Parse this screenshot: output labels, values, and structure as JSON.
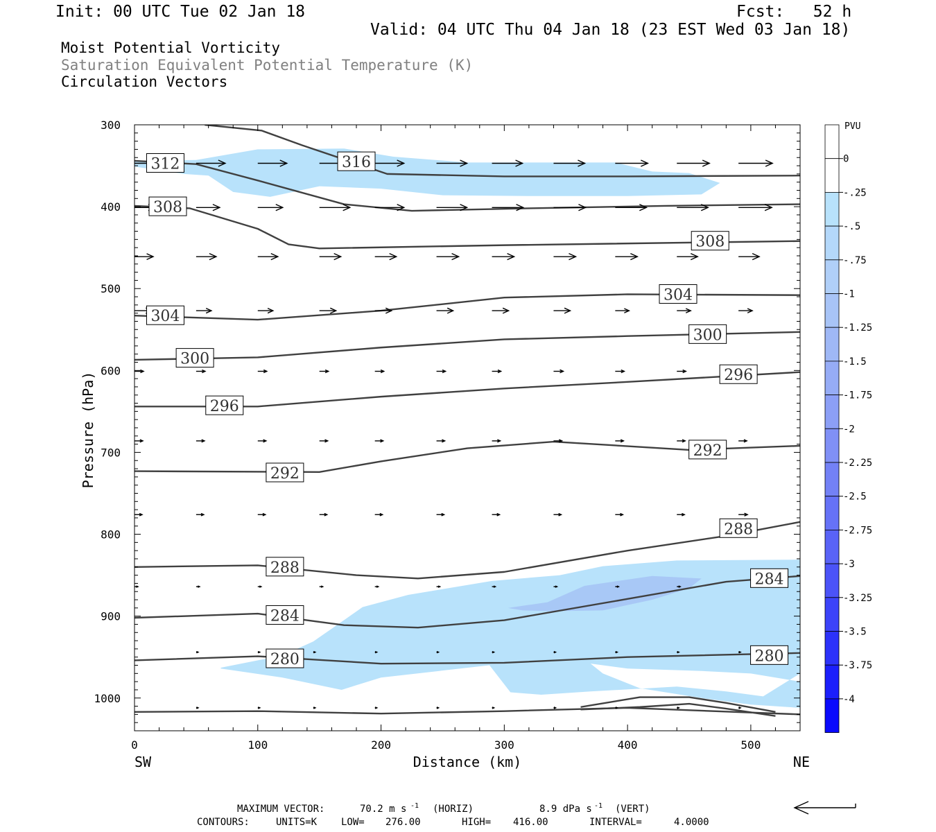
{
  "header": {
    "init": "Init: 00 UTC Tue 02 Jan 18",
    "fcst": "Fcst:   52 h",
    "valid": "Valid: 04 UTC Thu 04 Jan 18 (23 EST Wed 03 Jan 18)",
    "field1": "Moist Potential Vorticity",
    "field2": "Saturation Equivalent Potential Temperature (K)",
    "field3": "Circulation Vectors"
  },
  "colors": {
    "contour": "#404040",
    "field2_text": "#808080",
    "pv_fill_light": "#b8e2fb",
    "pv_fill_mid": "#a8c8f6"
  },
  "chart_data": {
    "type": "cross-section",
    "xlabel": "Distance (km)",
    "ylabel": "Pressure (hPa)",
    "x_end_left": "SW",
    "x_end_right": "NE",
    "xlim": [
      0,
      540
    ],
    "ylim": [
      1040,
      300
    ],
    "x_ticks": [
      0,
      100,
      200,
      300,
      400,
      500
    ],
    "y_ticks": [
      300,
      400,
      500,
      600,
      700,
      800,
      900,
      1000
    ],
    "colorbar": {
      "title": "PVU",
      "labels": [
        "0",
        "-.25",
        "-.5",
        "-.75",
        "-1",
        "-1.25",
        "-1.5",
        "-1.75",
        "-2",
        "-2.25",
        "-2.5",
        "-2.75",
        "-3",
        "-3.25",
        "-3.5",
        "-3.75",
        "-4"
      ],
      "colors": [
        "#ffffff",
        "#ffffff",
        "#b8e2fb",
        "#b4d8fa",
        "#b0cff8",
        "#a8c4f7",
        "#9fb8f6",
        "#96acf6",
        "#8c9ff6",
        "#8090f6",
        "#7381f6",
        "#6672f7",
        "#5963f7",
        "#4b53f8",
        "#3c43f9",
        "#2c32fa",
        "#1b1ffc",
        "#0a0afd"
      ]
    },
    "contours": [
      {
        "label": "316",
        "points": [
          [
            57,
            300
          ],
          [
            103,
            307
          ],
          [
            136,
            325
          ],
          [
            205,
            360
          ],
          [
            300,
            363
          ],
          [
            400,
            363
          ],
          [
            540,
            362
          ]
        ],
        "label_at": [
          [
            180,
            345
          ]
        ]
      },
      {
        "label": "312",
        "points": [
          [
            0,
            344
          ],
          [
            50,
            348
          ],
          [
            100,
            368
          ],
          [
            170,
            397
          ],
          [
            225,
            405
          ],
          [
            320,
            402
          ],
          [
            430,
            399
          ],
          [
            540,
            397
          ]
        ],
        "label_at": [
          [
            25,
            347
          ]
        ]
      },
      {
        "label": "308",
        "points": [
          [
            0,
            399
          ],
          [
            45,
            402
          ],
          [
            100,
            427
          ],
          [
            125,
            446
          ],
          [
            150,
            451
          ],
          [
            300,
            447
          ],
          [
            540,
            442
          ]
        ],
        "label_at": [
          [
            27,
            400
          ],
          [
            467,
            442
          ]
        ]
      },
      {
        "label": "304",
        "points": [
          [
            0,
            533
          ],
          [
            100,
            538
          ],
          [
            200,
            527
          ],
          [
            300,
            511
          ],
          [
            400,
            507
          ],
          [
            540,
            508
          ]
        ],
        "label_at": [
          [
            25,
            533
          ],
          [
            441,
            507
          ]
        ]
      },
      {
        "label": "300",
        "points": [
          [
            0,
            587
          ],
          [
            100,
            584
          ],
          [
            200,
            572
          ],
          [
            300,
            562
          ],
          [
            400,
            558
          ],
          [
            540,
            553
          ]
        ],
        "label_at": [
          [
            49,
            585
          ],
          [
            465,
            556
          ]
        ]
      },
      {
        "label": "296",
        "points": [
          [
            0,
            644
          ],
          [
            100,
            644
          ],
          [
            200,
            632
          ],
          [
            300,
            622
          ],
          [
            400,
            614
          ],
          [
            540,
            602
          ]
        ],
        "label_at": [
          [
            73,
            643
          ],
          [
            490,
            605
          ]
        ]
      },
      {
        "label": "292",
        "points": [
          [
            0,
            723
          ],
          [
            150,
            724
          ],
          [
            200,
            711
          ],
          [
            270,
            695
          ],
          [
            340,
            687
          ],
          [
            450,
            697
          ],
          [
            540,
            692
          ]
        ],
        "label_at": [
          [
            122,
            725
          ],
          [
            465,
            697
          ]
        ]
      },
      {
        "label": "288",
        "points": [
          [
            0,
            840
          ],
          [
            100,
            838
          ],
          [
            180,
            850
          ],
          [
            230,
            854
          ],
          [
            300,
            846
          ],
          [
            400,
            820
          ],
          [
            480,
            802
          ],
          [
            540,
            785
          ]
        ],
        "label_at": [
          [
            122,
            840
          ],
          [
            490,
            793
          ]
        ]
      },
      {
        "label": "284",
        "points": [
          [
            0,
            902
          ],
          [
            100,
            897
          ],
          [
            170,
            911
          ],
          [
            230,
            914
          ],
          [
            300,
            905
          ],
          [
            400,
            879
          ],
          [
            480,
            858
          ],
          [
            540,
            851
          ]
        ],
        "label_at": [
          [
            122,
            899
          ],
          [
            515,
            854
          ]
        ]
      },
      {
        "label": "280",
        "points": [
          [
            0,
            954
          ],
          [
            100,
            949
          ],
          [
            200,
            958
          ],
          [
            300,
            957
          ],
          [
            400,
            950
          ],
          [
            540,
            945
          ]
        ],
        "label_at": [
          [
            122,
            952
          ],
          [
            515,
            948
          ]
        ]
      },
      {
        "label": "",
        "points": [
          [
            0,
            1017
          ],
          [
            100,
            1016
          ],
          [
            200,
            1019
          ],
          [
            300,
            1016
          ],
          [
            400,
            1012
          ],
          [
            540,
            1020
          ]
        ],
        "label_at": []
      },
      {
        "label": "",
        "points": [
          [
            362,
            1011
          ],
          [
            410,
            999
          ],
          [
            450,
            999
          ],
          [
            480,
            1006
          ],
          [
            520,
            1017
          ]
        ],
        "label_at": []
      },
      {
        "label": "",
        "points": [
          [
            362,
            1014
          ],
          [
            410,
            1011
          ],
          [
            450,
            1007
          ],
          [
            480,
            1013
          ],
          [
            520,
            1022
          ]
        ],
        "label_at": []
      }
    ],
    "pv_regions": [
      {
        "level": "-.25",
        "points": [
          [
            0,
            344
          ],
          [
            50,
            343
          ],
          [
            100,
            330
          ],
          [
            170,
            329
          ],
          [
            210,
            339
          ],
          [
            270,
            346
          ],
          [
            330,
            346
          ],
          [
            390,
            346
          ],
          [
            420,
            357
          ],
          [
            450,
            359
          ],
          [
            475,
            371
          ],
          [
            460,
            385
          ],
          [
            400,
            387
          ],
          [
            320,
            387
          ],
          [
            250,
            386
          ],
          [
            200,
            378
          ],
          [
            150,
            375
          ],
          [
            110,
            388
          ],
          [
            80,
            382
          ],
          [
            60,
            362
          ],
          [
            40,
            360
          ],
          [
            0,
            351
          ]
        ]
      },
      {
        "level": "-.25",
        "points": [
          [
            70,
            963
          ],
          [
            120,
            948
          ],
          [
            145,
            931
          ],
          [
            168,
            907
          ],
          [
            185,
            889
          ],
          [
            222,
            874
          ],
          [
            290,
            857
          ],
          [
            345,
            850
          ],
          [
            380,
            839
          ],
          [
            440,
            832
          ],
          [
            540,
            831
          ],
          [
            540,
            980
          ],
          [
            500,
            970
          ],
          [
            460,
            967
          ],
          [
            400,
            964
          ],
          [
            370,
            958
          ],
          [
            380,
            970
          ],
          [
            410,
            988
          ],
          [
            460,
            1000
          ],
          [
            500,
            1008
          ],
          [
            540,
            1012
          ],
          [
            540,
            970
          ],
          [
            510,
            998
          ],
          [
            480,
            992
          ],
          [
            440,
            986
          ],
          [
            370,
            992
          ],
          [
            330,
            996
          ],
          [
            305,
            993
          ],
          [
            288,
            960
          ],
          [
            200,
            975
          ],
          [
            168,
            990
          ],
          [
            120,
            975
          ],
          [
            70,
            964
          ]
        ]
      },
      {
        "level": "-.5",
        "points": [
          [
            303,
            890
          ],
          [
            335,
            883
          ],
          [
            365,
            863
          ],
          [
            420,
            851
          ],
          [
            460,
            854
          ],
          [
            450,
            866
          ],
          [
            420,
            880
          ],
          [
            380,
            893
          ],
          [
            340,
            894
          ],
          [
            315,
            893
          ]
        ]
      }
    ],
    "vectors": [
      {
        "p": 347,
        "x": [
          0,
          50,
          100,
          150,
          195,
          245,
          290,
          340,
          390,
          440,
          490,
          540
        ],
        "len": [
          40,
          42,
          42,
          42,
          42,
          44,
          44,
          45,
          47,
          47,
          49,
          51
        ]
      },
      {
        "p": 401,
        "x": [
          0,
          50,
          100,
          150,
          195,
          245,
          290,
          340,
          390,
          440,
          490,
          540
        ],
        "len": [
          30,
          34,
          36,
          44,
          42,
          44,
          45,
          46,
          45,
          45,
          48,
          50
        ]
      },
      {
        "p": 461,
        "x": [
          0,
          50,
          100,
          150,
          195,
          245,
          290,
          340,
          390,
          440,
          490
        ],
        "len": [
          27,
          29,
          29,
          31,
          31,
          32,
          32,
          32,
          32,
          30,
          30
        ]
      },
      {
        "p": 527,
        "x": [
          0,
          50,
          100,
          150,
          195,
          245,
          290,
          340,
          390,
          440,
          490
        ],
        "len": [
          25,
          22,
          22,
          24,
          24,
          24,
          24,
          24,
          20,
          20,
          20
        ]
      },
      {
        "p": 601,
        "x": [
          0,
          50,
          100,
          150,
          195,
          245,
          290,
          340,
          390,
          440,
          490
        ],
        "len": [
          13,
          13,
          13,
          13,
          13,
          13,
          13,
          14,
          13,
          13,
          12
        ]
      },
      {
        "p": 686,
        "x": [
          0,
          50,
          100,
          150,
          195,
          245,
          290,
          340,
          390,
          440,
          490
        ],
        "len": [
          12,
          12,
          12,
          12,
          12,
          12,
          12,
          12,
          12,
          12,
          12
        ]
      },
      {
        "p": 776,
        "x": [
          0,
          50,
          100,
          150,
          195,
          245,
          290,
          340,
          390,
          440,
          490
        ],
        "len": [
          11,
          11,
          11,
          11,
          11,
          11,
          11,
          11,
          11,
          11,
          13
        ]
      },
      {
        "p": 864,
        "x": [
          0,
          50,
          100,
          150,
          195,
          245,
          290,
          340,
          390,
          440
        ],
        "len": [
          5,
          5,
          5,
          5,
          5,
          5,
          5,
          5,
          5,
          5
        ]
      },
      {
        "p": 944,
        "x": [
          50,
          100,
          145,
          195,
          245,
          290,
          340,
          390,
          440,
          490
        ],
        "len": [
          3,
          3,
          3,
          3,
          3,
          3,
          3,
          3,
          3,
          3
        ]
      },
      {
        "p": 1012,
        "x": [
          50,
          100,
          145,
          195,
          245,
          290,
          340,
          390,
          440,
          490
        ],
        "len": [
          3,
          3,
          3,
          3,
          3,
          3,
          3,
          3,
          3,
          3
        ]
      }
    ]
  },
  "footer": {
    "max_vector_label": "MAXIMUM VECTOR:",
    "max_vector_horiz": "70.2 m s",
    "horiz_unit": "(HORIZ)",
    "max_vector_vert": "8.9 dPa s",
    "vert_unit": "(VERT)",
    "exponent": "-1",
    "contours_label": "CONTOURS:",
    "units": "UNITS=K",
    "low_label": "LOW=",
    "low": "276.00",
    "high_label": "HIGH=",
    "high": "416.00",
    "interval_label": "INTERVAL=",
    "interval": "4.0000"
  }
}
